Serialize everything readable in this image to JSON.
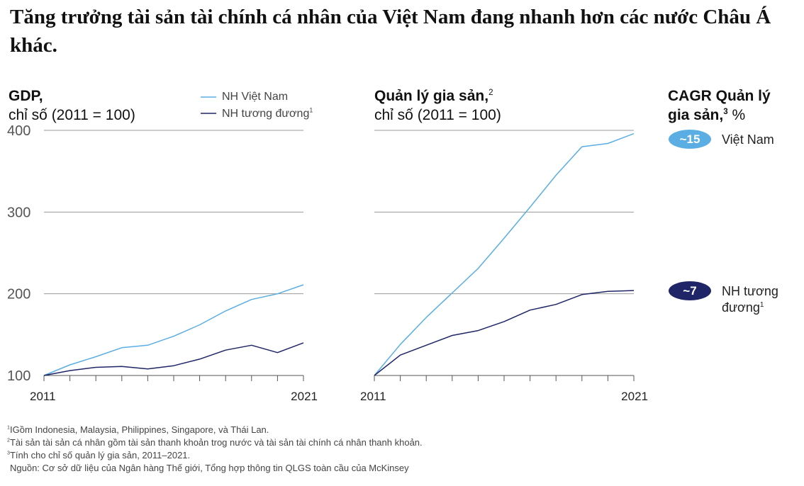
{
  "title": "Tăng trưởng tài sản tài chính cá nhân của Việt Nam đang nhanh hơn các nước Châu Á khác.",
  "colors": {
    "vietnam": "#5aaee3",
    "peers": "#1f2566",
    "grid": "#999999",
    "axis": "#555555"
  },
  "left_panel": {
    "title_bold": "GDP,",
    "title_rest": "chỉ số (2011 = 100)",
    "legend": {
      "vietnam": "NH Việt Nam",
      "peers": "NH tương đương",
      "peers_sup": "1"
    }
  },
  "right_panel": {
    "title_bold": "Quản lý gia sản,",
    "title_sup": "2",
    "title_rest": "chỉ số (2011 = 100)"
  },
  "cagr": {
    "title_line1": "CAGR Quản lý",
    "title_line2": "gia sản,",
    "title_sup": "3",
    "title_unit": " %",
    "vietnam_value": "~15",
    "vietnam_label": "Việt Nam",
    "peers_value": "~7",
    "peers_label_line1": "NH tương",
    "peers_label_line2": "đương",
    "peers_sup": "1"
  },
  "chart_data": [
    {
      "type": "line",
      "x": [
        2011,
        2012,
        2013,
        2014,
        2015,
        2016,
        2017,
        2018,
        2019,
        2020,
        2021
      ],
      "x_tick_labels": [
        "2011",
        "2021"
      ],
      "y_ticks": [
        "100",
        "200",
        "300",
        "400"
      ],
      "ylim": [
        100,
        400
      ],
      "grid": true,
      "legend_position": "top-right",
      "series": [
        {
          "name": "NH Việt Nam",
          "color": "#5aaee3",
          "values": [
            100,
            113,
            123,
            134,
            137,
            148,
            162,
            179,
            193,
            200,
            211
          ]
        },
        {
          "name": "NH tương đương",
          "color": "#1f2566",
          "values": [
            100,
            106,
            110,
            111,
            108,
            112,
            120,
            131,
            137,
            128,
            140
          ]
        }
      ]
    },
    {
      "type": "line",
      "x": [
        2011,
        2012,
        2013,
        2014,
        2015,
        2016,
        2017,
        2018,
        2019,
        2020,
        2021
      ],
      "x_tick_labels": [
        "2011",
        "2021"
      ],
      "ylim": [
        100,
        400
      ],
      "grid": true,
      "series": [
        {
          "name": "Việt Nam",
          "color": "#5aaee3",
          "values": [
            100,
            138,
            171,
            201,
            231,
            268,
            306,
            345,
            380,
            384,
            396
          ]
        },
        {
          "name": "NH tương đương",
          "color": "#1f2566",
          "values": [
            100,
            125,
            137,
            149,
            155,
            166,
            180,
            187,
            199,
            203,
            204
          ]
        }
      ]
    }
  ],
  "footnotes": {
    "n1_sup": "1",
    "n1": "IGồm Indonesia, Malaysia, Philippines, Singapore, và Thái Lan.",
    "n2_sup": "2",
    "n2": "Tài sản tài sản cá nhân gồm tài sản thanh khoản trog nước và tài sản tài chính cá nhân thanh khoản.",
    "n3_sup": "3",
    "n3": "Tính cho chỉ số quản lý gia sản, 2011–2021.",
    "source": "Nguồn: Cơ sở dữ liệu của Ngân hàng Thế giới, Tổng hợp thông tin QLGS toàn cầu của McKinsey"
  }
}
